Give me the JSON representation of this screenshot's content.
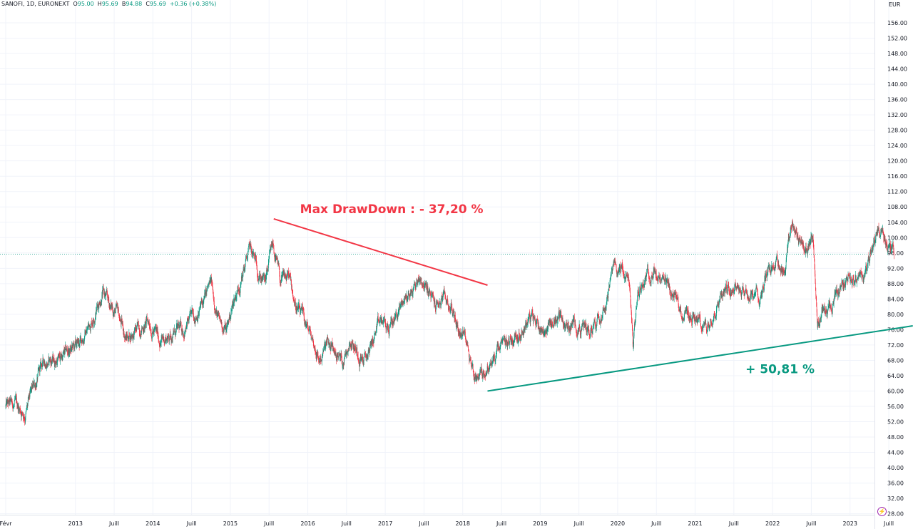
{
  "legend": {
    "symbol": "SANOFI, 1D, EURONEXT",
    "o_label": "O",
    "o_value": "95.00",
    "h_label": "H",
    "h_value": "95.69",
    "b_label": "B",
    "b_value": "94.88",
    "c_label": "C",
    "c_value": "95.69",
    "change": "+0.36 (+0.38%)"
  },
  "colors": {
    "up": "#089981",
    "down": "#f23645",
    "drawdown": "#f23645",
    "gain": "#089981",
    "lastprice": "#089981"
  },
  "icons": {
    "alert": "flash-icon"
  },
  "chart_data": {
    "type": "candlestick",
    "currency": "EUR",
    "y_ticks": [
      "156.00",
      "152.00",
      "148.00",
      "144.00",
      "140.00",
      "136.00",
      "132.00",
      "128.00",
      "124.00",
      "120.00",
      "116.00",
      "112.00",
      "108.00",
      "104.00",
      "100.00",
      "96.00",
      "92.00",
      "88.00",
      "84.00",
      "80.00",
      "76.00",
      "72.00",
      "68.00",
      "64.00",
      "60.00",
      "56.00",
      "52.00",
      "48.00",
      "44.00",
      "40.00",
      "36.00",
      "32.00",
      "28.00"
    ],
    "ylim": [
      28,
      156
    ],
    "x_ticks": [
      {
        "label": "Févr",
        "t": 2012.1
      },
      {
        "label": "2013",
        "t": 2013.0
      },
      {
        "label": "Juill",
        "t": 2013.5
      },
      {
        "label": "2014",
        "t": 2014.0
      },
      {
        "label": "Juill",
        "t": 2014.5
      },
      {
        "label": "2015",
        "t": 2015.0
      },
      {
        "label": "Juill",
        "t": 2015.5
      },
      {
        "label": "2016",
        "t": 2016.0
      },
      {
        "label": "Juill",
        "t": 2016.5
      },
      {
        "label": "2017",
        "t": 2017.0
      },
      {
        "label": "Juill",
        "t": 2017.5
      },
      {
        "label": "2018",
        "t": 2018.0
      },
      {
        "label": "Juill",
        "t": 2018.5
      },
      {
        "label": "2019",
        "t": 2019.0
      },
      {
        "label": "Juill",
        "t": 2019.5
      },
      {
        "label": "2020",
        "t": 2020.0
      },
      {
        "label": "Juill",
        "t": 2020.5
      },
      {
        "label": "2021",
        "t": 2021.0
      },
      {
        "label": "Juill",
        "t": 2021.5
      },
      {
        "label": "2022",
        "t": 2022.0
      },
      {
        "label": "Juill",
        "t": 2022.5
      },
      {
        "label": "2023",
        "t": 2023.0
      },
      {
        "label": "Juill",
        "t": 2023.5
      }
    ],
    "xlim": [
      2012.1,
      2023.82
    ],
    "price_path": [
      [
        2012.1,
        56
      ],
      [
        2012.25,
        56
      ],
      [
        2012.35,
        54
      ],
      [
        2012.45,
        60
      ],
      [
        2012.6,
        68
      ],
      [
        2012.75,
        68
      ],
      [
        2012.9,
        70
      ],
      [
        2013.05,
        72
      ],
      [
        2013.2,
        78
      ],
      [
        2013.35,
        86
      ],
      [
        2013.45,
        82
      ],
      [
        2013.55,
        80
      ],
      [
        2013.65,
        74
      ],
      [
        2013.8,
        76
      ],
      [
        2013.95,
        78
      ],
      [
        2014.1,
        73
      ],
      [
        2014.25,
        75
      ],
      [
        2014.4,
        76
      ],
      [
        2014.55,
        80
      ],
      [
        2014.65,
        83
      ],
      [
        2014.75,
        88
      ],
      [
        2014.85,
        78
      ],
      [
        2014.95,
        76
      ],
      [
        2015.05,
        84
      ],
      [
        2015.15,
        90
      ],
      [
        2015.25,
        97
      ],
      [
        2015.35,
        92
      ],
      [
        2015.45,
        88
      ],
      [
        2015.55,
        98
      ],
      [
        2015.65,
        88
      ],
      [
        2015.75,
        90
      ],
      [
        2015.85,
        82
      ],
      [
        2015.95,
        78
      ],
      [
        2016.05,
        74
      ],
      [
        2016.15,
        68
      ],
      [
        2016.25,
        72
      ],
      [
        2016.35,
        70
      ],
      [
        2016.45,
        68
      ],
      [
        2016.55,
        74
      ],
      [
        2016.65,
        70
      ],
      [
        2016.75,
        68
      ],
      [
        2016.85,
        74
      ],
      [
        2016.95,
        78
      ],
      [
        2017.05,
        76
      ],
      [
        2017.15,
        80
      ],
      [
        2017.25,
        84
      ],
      [
        2017.35,
        86
      ],
      [
        2017.45,
        90
      ],
      [
        2017.55,
        86
      ],
      [
        2017.65,
        82
      ],
      [
        2017.75,
        84
      ],
      [
        2017.85,
        82
      ],
      [
        2017.95,
        76
      ],
      [
        2018.05,
        74
      ],
      [
        2018.15,
        64
      ],
      [
        2018.25,
        65
      ],
      [
        2018.35,
        66
      ],
      [
        2018.45,
        70
      ],
      [
        2018.55,
        72
      ],
      [
        2018.65,
        74
      ],
      [
        2018.75,
        76
      ],
      [
        2018.85,
        79
      ],
      [
        2018.95,
        78
      ],
      [
        2019.05,
        76
      ],
      [
        2019.15,
        78
      ],
      [
        2019.25,
        80
      ],
      [
        2019.35,
        76
      ],
      [
        2019.45,
        78
      ],
      [
        2019.55,
        76
      ],
      [
        2019.65,
        76
      ],
      [
        2019.75,
        80
      ],
      [
        2019.85,
        84
      ],
      [
        2019.95,
        92
      ],
      [
        2020.05,
        92
      ],
      [
        2020.15,
        88
      ],
      [
        2020.2,
        72
      ],
      [
        2020.25,
        84
      ],
      [
        2020.35,
        90
      ],
      [
        2020.45,
        92
      ],
      [
        2020.55,
        88
      ],
      [
        2020.65,
        86
      ],
      [
        2020.75,
        84
      ],
      [
        2020.85,
        80
      ],
      [
        2020.95,
        80
      ],
      [
        2021.05,
        78
      ],
      [
        2021.15,
        76
      ],
      [
        2021.25,
        82
      ],
      [
        2021.35,
        86
      ],
      [
        2021.45,
        88
      ],
      [
        2021.55,
        88
      ],
      [
        2021.65,
        86
      ],
      [
        2021.75,
        84
      ],
      [
        2021.85,
        86
      ],
      [
        2021.95,
        92
      ],
      [
        2022.05,
        94
      ],
      [
        2022.15,
        92
      ],
      [
        2022.25,
        104
      ],
      [
        2022.35,
        100
      ],
      [
        2022.45,
        96
      ],
      [
        2022.52,
        100
      ],
      [
        2022.58,
        78
      ],
      [
        2022.65,
        82
      ],
      [
        2022.75,
        80
      ],
      [
        2022.85,
        86
      ],
      [
        2022.95,
        90
      ],
      [
        2023.05,
        90
      ],
      [
        2023.12,
        88
      ],
      [
        2023.2,
        90
      ],
      [
        2023.28,
        96
      ],
      [
        2023.35,
        102
      ],
      [
        2023.45,
        100
      ],
      [
        2023.52,
        97
      ],
      [
        2023.57,
        95.69
      ]
    ],
    "last_price": 95.69,
    "annotations": [
      {
        "type": "trendline",
        "from": [
          2015.56,
          104.9
        ],
        "to": [
          2018.32,
          87.6
        ],
        "color": "drawdown"
      },
      {
        "type": "trendline",
        "from": [
          2018.32,
          60.0
        ],
        "to": [
          2023.81,
          77.0
        ],
        "color": "gain"
      }
    ]
  },
  "annotation_text": {
    "drawdown": "Max DrawDown : - 37,20 %",
    "gain": "+ 50,81 %"
  }
}
